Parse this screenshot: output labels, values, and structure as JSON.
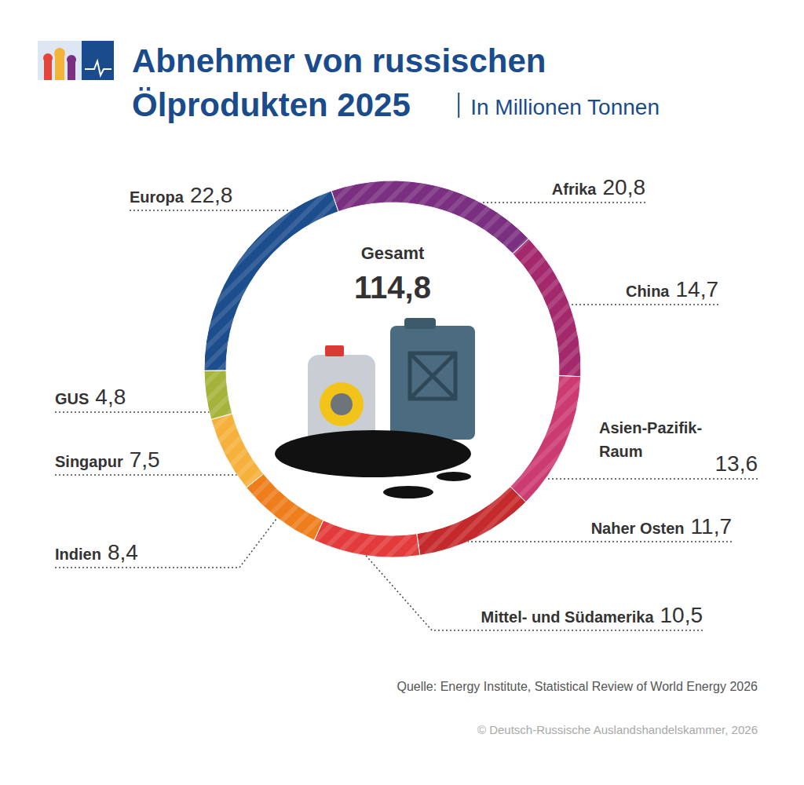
{
  "chart_data": {
    "type": "donut",
    "title": "Abnehmer von russischen Ölprodukten 2025",
    "subtitle": "In Millionen Tonnen",
    "categories": [
      "Afrika",
      "China",
      "Asien-Pazifik-Raum",
      "Naher Osten",
      "Mittel- und Südamerika",
      "Indien",
      "Singapur",
      "GUS",
      "Europa"
    ],
    "values": [
      20.8,
      14.7,
      13.6,
      11.7,
      10.5,
      8.4,
      7.5,
      4.8,
      22.8
    ],
    "value_labels": [
      "20,8",
      "14,7",
      "13,6",
      "11,7",
      "10,5",
      "8,4",
      "7,5",
      "4,8",
      "22,8"
    ],
    "colors": [
      "#7a2f80",
      "#a3296c",
      "#cb3a70",
      "#c42a2c",
      "#e33b3b",
      "#ee7d1c",
      "#f6b13c",
      "#a4b43b",
      "#1c4d8c"
    ],
    "data_labels": true,
    "total": {
      "label": "Gesamt",
      "value": 114.8,
      "value_label": "114,8"
    },
    "source": "Quelle: Energy Institute, Statistical Review of World Energy 2026",
    "copyright": "© Deutsch-Russische Auslandshandelskammer, 2026"
  }
}
